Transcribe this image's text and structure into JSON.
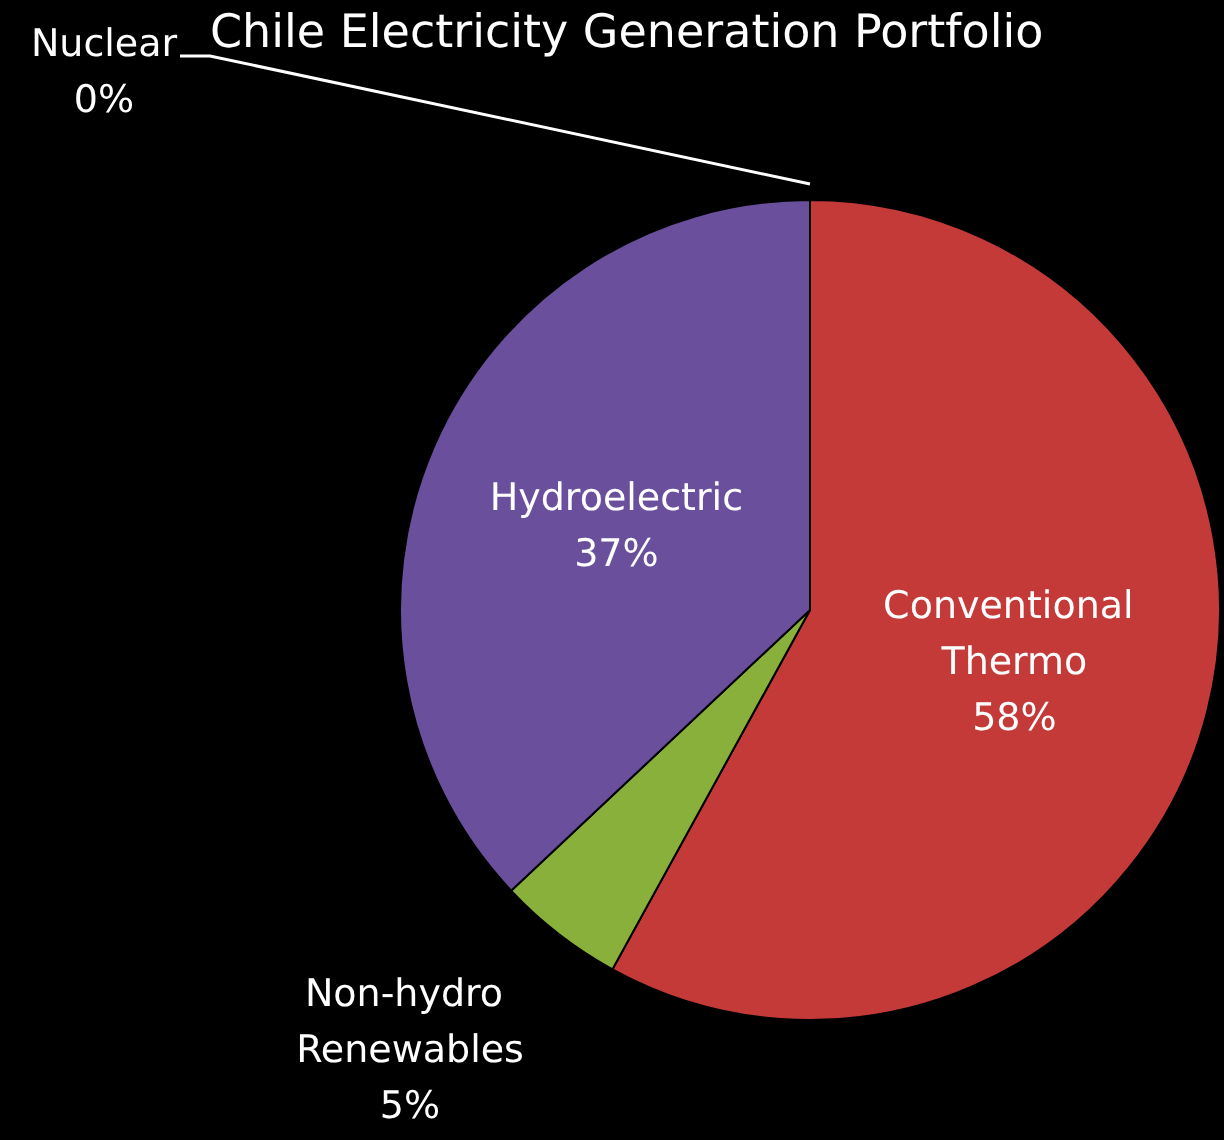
{
  "chart_data": {
    "type": "pie",
    "title": "Chile Electricity Generation Portfolio",
    "categories": [
      "Conventional Thermo",
      "Non-hydro Renewables",
      "Hydroelectric",
      "Nuclear"
    ],
    "values": [
      58,
      5,
      37,
      0
    ],
    "value_labels": [
      "58%",
      "5%",
      "37%",
      "0%"
    ],
    "colors": [
      "#c43a38",
      "#88b03a",
      "#6a4f9c",
      "#4f81bd"
    ],
    "legend": false
  }
}
